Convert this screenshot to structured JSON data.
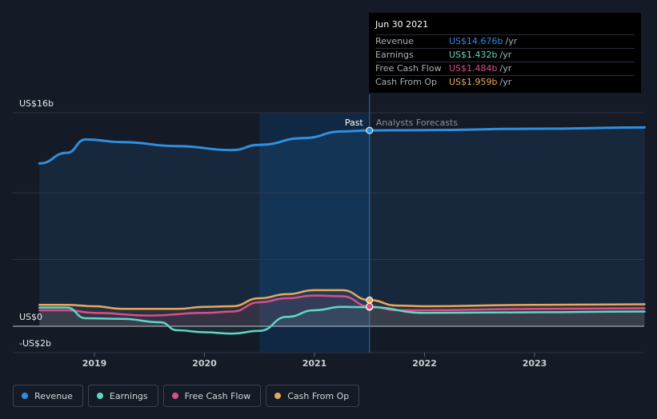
{
  "chart_data": {
    "type": "line",
    "x_ticks": [
      "2019",
      "2020",
      "2021",
      "2022",
      "2023"
    ],
    "y_labels": {
      "top": "US$16b",
      "zero": "US$0",
      "bottom": "-US$2b"
    },
    "ylim": [
      -2,
      16
    ],
    "past_label": "Past",
    "forecast_label": "Analysts Forecasts",
    "series": [
      {
        "name": "Revenue",
        "color": "#2f8fe0",
        "points": [
          [
            2018.5,
            12.2
          ],
          [
            2018.75,
            13.0
          ],
          [
            2018.92,
            14.0
          ],
          [
            2019.25,
            13.8
          ],
          [
            2019.75,
            13.5
          ],
          [
            2020.25,
            13.2
          ],
          [
            2020.5,
            13.6
          ],
          [
            2020.9,
            14.1
          ],
          [
            2021.25,
            14.6
          ],
          [
            2021.5,
            14.676
          ],
          [
            2022.0,
            14.7
          ],
          [
            2023.0,
            14.8
          ],
          [
            2024.0,
            14.9
          ]
        ]
      },
      {
        "name": "Earnings",
        "color": "#5fd7c4",
        "points": [
          [
            2018.5,
            1.4
          ],
          [
            2018.75,
            1.4
          ],
          [
            2018.92,
            0.6
          ],
          [
            2019.25,
            0.55
          ],
          [
            2019.6,
            0.3
          ],
          [
            2019.75,
            -0.3
          ],
          [
            2020.0,
            -0.45
          ],
          [
            2020.25,
            -0.55
          ],
          [
            2020.5,
            -0.35
          ],
          [
            2020.75,
            0.7
          ],
          [
            2021.0,
            1.2
          ],
          [
            2021.25,
            1.45
          ],
          [
            2021.5,
            1.432
          ],
          [
            2022.0,
            1.0
          ],
          [
            2023.0,
            1.05
          ],
          [
            2024.0,
            1.1
          ]
        ]
      },
      {
        "name": "Free Cash Flow",
        "color": "#d94f8b",
        "points": [
          [
            2018.5,
            1.2
          ],
          [
            2018.75,
            1.2
          ],
          [
            2019.0,
            1.0
          ],
          [
            2019.5,
            0.8
          ],
          [
            2020.0,
            1.0
          ],
          [
            2020.25,
            1.1
          ],
          [
            2020.5,
            1.8
          ],
          [
            2020.75,
            2.1
          ],
          [
            2021.0,
            2.3
          ],
          [
            2021.25,
            2.25
          ],
          [
            2021.5,
            1.484
          ],
          [
            2021.75,
            1.2
          ],
          [
            2022.0,
            1.2
          ],
          [
            2023.0,
            1.3
          ],
          [
            2024.0,
            1.35
          ]
        ]
      },
      {
        "name": "Cash From Op",
        "color": "#e8a95a",
        "points": [
          [
            2018.5,
            1.6
          ],
          [
            2018.75,
            1.6
          ],
          [
            2019.0,
            1.5
          ],
          [
            2019.25,
            1.3
          ],
          [
            2019.75,
            1.3
          ],
          [
            2020.0,
            1.45
          ],
          [
            2020.25,
            1.5
          ],
          [
            2020.5,
            2.1
          ],
          [
            2020.75,
            2.4
          ],
          [
            2021.0,
            2.7
          ],
          [
            2021.25,
            2.7
          ],
          [
            2021.5,
            1.959
          ],
          [
            2021.75,
            1.55
          ],
          [
            2022.0,
            1.5
          ],
          [
            2023.0,
            1.6
          ],
          [
            2024.0,
            1.65
          ]
        ]
      }
    ],
    "grid": true
  },
  "tooltip": {
    "date": "Jun 30 2021",
    "rows": [
      {
        "label": "Revenue",
        "value": "US$14.676b",
        "unit": "/yr",
        "color": "#2f8fe0"
      },
      {
        "label": "Earnings",
        "value": "US$1.432b",
        "unit": "/yr",
        "color": "#5fd7c4"
      },
      {
        "label": "Free Cash Flow",
        "value": "US$1.484b",
        "unit": "/yr",
        "color": "#d94f8b"
      },
      {
        "label": "Cash From Op",
        "value": "US$1.959b",
        "unit": "/yr",
        "color": "#e8a95a"
      }
    ]
  },
  "legend": [
    {
      "label": "Revenue",
      "color": "#2f8fe0"
    },
    {
      "label": "Earnings",
      "color": "#5fd7c4"
    },
    {
      "label": "Free Cash Flow",
      "color": "#d94f8b"
    },
    {
      "label": "Cash From Op",
      "color": "#e8a95a"
    }
  ]
}
